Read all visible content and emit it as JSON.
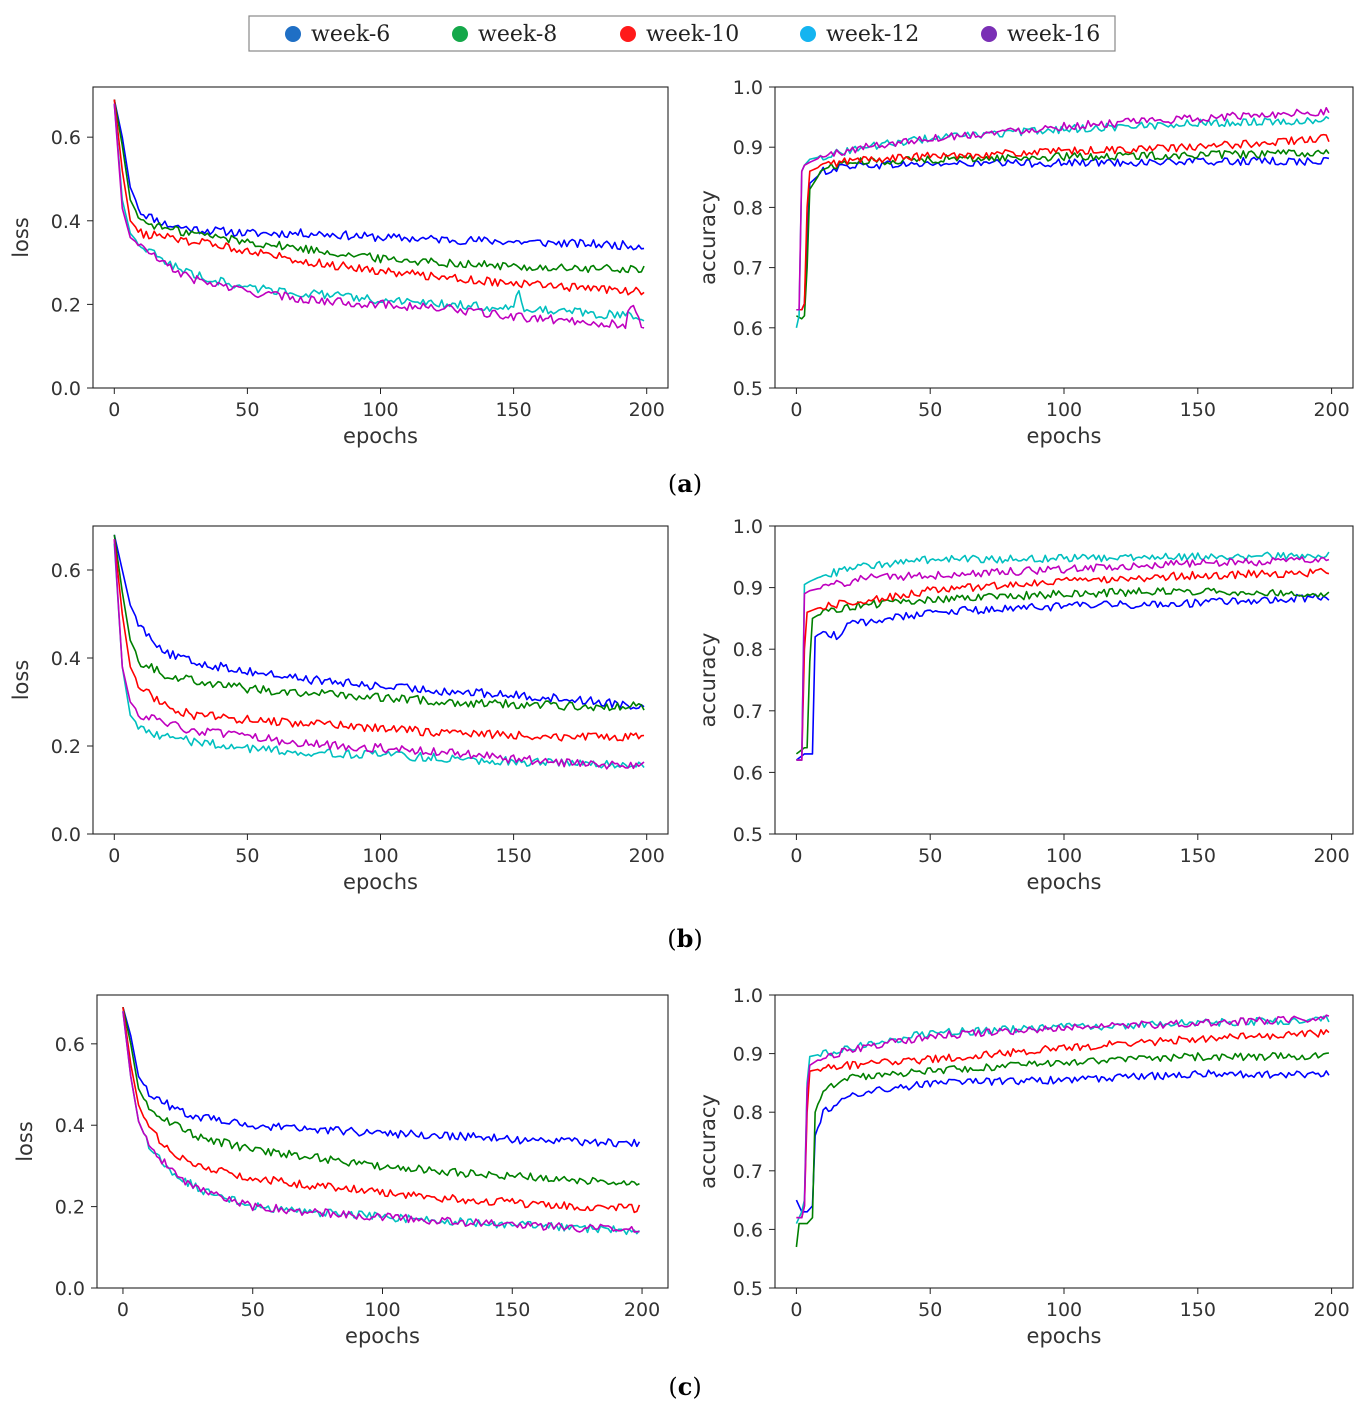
{
  "legend": [
    {
      "label": "week-6",
      "color": "#1f6fc5"
    },
    {
      "label": "week-8",
      "color": "#14a84a"
    },
    {
      "label": "week-10",
      "color": "#ff1a1a"
    },
    {
      "label": "week-12",
      "color": "#14b4f0"
    },
    {
      "label": "week-16",
      "color": "#7a2fb5"
    }
  ],
  "series_colors": {
    "week-6": "#0000ff",
    "week-8": "#008000",
    "week-10": "#ff0000",
    "week-12": "#00bfbf",
    "week-16": "#bf00bf"
  },
  "captions": [
    {
      "open": "(",
      "letter": "a",
      "close": ")"
    },
    {
      "open": "(",
      "letter": "b",
      "close": ")"
    },
    {
      "open": "(",
      "letter": "c",
      "close": ")"
    }
  ],
  "chart_data": [
    {
      "id": "a-loss",
      "type": "line",
      "xlabel": "epochs",
      "ylabel": "loss",
      "xlim": [
        -8,
        208
      ],
      "ylim": [
        0,
        0.72
      ],
      "xticks": [
        0,
        50,
        100,
        150,
        200
      ],
      "yticks": [
        0.0,
        0.2,
        0.4,
        0.6
      ],
      "ytick_labels": [
        "0.0",
        "0.2",
        "0.4",
        "0.6"
      ],
      "series": [
        {
          "name": "week-6",
          "x": [
            0,
            3,
            6,
            10,
            20,
            30,
            50,
            75,
            100,
            125,
            150,
            175,
            199
          ],
          "values": [
            0.69,
            0.6,
            0.48,
            0.42,
            0.39,
            0.38,
            0.37,
            0.37,
            0.36,
            0.355,
            0.35,
            0.345,
            0.34
          ]
        },
        {
          "name": "week-8",
          "x": [
            0,
            3,
            6,
            10,
            20,
            30,
            50,
            75,
            100,
            125,
            150,
            175,
            199
          ],
          "values": [
            0.69,
            0.58,
            0.45,
            0.4,
            0.38,
            0.37,
            0.35,
            0.33,
            0.31,
            0.3,
            0.29,
            0.285,
            0.285
          ]
        },
        {
          "name": "week-10",
          "x": [
            0,
            3,
            6,
            10,
            20,
            30,
            50,
            75,
            100,
            125,
            150,
            175,
            199
          ],
          "values": [
            0.69,
            0.52,
            0.4,
            0.37,
            0.36,
            0.35,
            0.33,
            0.3,
            0.28,
            0.265,
            0.25,
            0.24,
            0.23
          ]
        },
        {
          "name": "week-12",
          "x": [
            0,
            3,
            6,
            10,
            20,
            30,
            50,
            75,
            100,
            125,
            150,
            152,
            154,
            175,
            199
          ],
          "values": [
            0.68,
            0.45,
            0.37,
            0.34,
            0.3,
            0.27,
            0.24,
            0.225,
            0.21,
            0.2,
            0.19,
            0.24,
            0.19,
            0.18,
            0.17
          ]
        },
        {
          "name": "week-16",
          "x": [
            0,
            3,
            6,
            10,
            20,
            30,
            50,
            75,
            100,
            125,
            150,
            175,
            192,
            194,
            199
          ],
          "values": [
            0.68,
            0.43,
            0.36,
            0.34,
            0.29,
            0.26,
            0.23,
            0.21,
            0.2,
            0.19,
            0.17,
            0.16,
            0.15,
            0.2,
            0.14
          ]
        }
      ]
    },
    {
      "id": "a-acc",
      "type": "line",
      "xlabel": "epochs",
      "ylabel": "accuracy",
      "xlim": [
        -8,
        208
      ],
      "ylim": [
        0.5,
        1.0
      ],
      "xticks": [
        0,
        50,
        100,
        150,
        200
      ],
      "yticks": [
        0.5,
        0.6,
        0.7,
        0.8,
        0.9,
        1.0
      ],
      "ytick_labels": [
        "0.5",
        "0.6",
        "0.7",
        "0.8",
        "0.9",
        "1.0"
      ],
      "series": [
        {
          "name": "week-6",
          "x": [
            0,
            2,
            3,
            4,
            5,
            10,
            20,
            50,
            100,
            150,
            199
          ],
          "values": [
            0.63,
            0.63,
            0.64,
            0.75,
            0.84,
            0.86,
            0.87,
            0.872,
            0.874,
            0.876,
            0.877
          ]
        },
        {
          "name": "week-8",
          "x": [
            0,
            2,
            3,
            4,
            5,
            10,
            20,
            50,
            100,
            150,
            199
          ],
          "values": [
            0.62,
            0.615,
            0.62,
            0.7,
            0.83,
            0.865,
            0.875,
            0.88,
            0.884,
            0.887,
            0.89
          ]
        },
        {
          "name": "week-10",
          "x": [
            0,
            2,
            3,
            4,
            5,
            10,
            20,
            50,
            100,
            150,
            199
          ],
          "values": [
            0.63,
            0.63,
            0.64,
            0.8,
            0.86,
            0.87,
            0.878,
            0.885,
            0.893,
            0.9,
            0.915
          ]
        },
        {
          "name": "week-12",
          "x": [
            0,
            1,
            2,
            3,
            5,
            10,
            25,
            50,
            100,
            150,
            199
          ],
          "values": [
            0.6,
            0.62,
            0.86,
            0.87,
            0.88,
            0.885,
            0.9,
            0.915,
            0.93,
            0.94,
            0.945
          ]
        },
        {
          "name": "week-16",
          "x": [
            0,
            1,
            2,
            3,
            5,
            10,
            25,
            50,
            100,
            150,
            199
          ],
          "values": [
            0.63,
            0.63,
            0.86,
            0.87,
            0.875,
            0.885,
            0.9,
            0.915,
            0.935,
            0.948,
            0.96
          ]
        }
      ]
    },
    {
      "id": "b-loss",
      "type": "line",
      "xlabel": "epochs",
      "ylabel": "loss",
      "xlim": [
        -8,
        208
      ],
      "ylim": [
        0,
        0.7
      ],
      "xticks": [
        0,
        50,
        100,
        150,
        200
      ],
      "yticks": [
        0.0,
        0.2,
        0.4,
        0.6
      ],
      "ytick_labels": [
        "0.0",
        "0.2",
        "0.4",
        "0.6"
      ],
      "series": [
        {
          "name": "week-6",
          "x": [
            0,
            3,
            6,
            10,
            20,
            30,
            50,
            75,
            100,
            125,
            150,
            175,
            199
          ],
          "values": [
            0.68,
            0.6,
            0.52,
            0.47,
            0.41,
            0.39,
            0.37,
            0.35,
            0.335,
            0.325,
            0.315,
            0.305,
            0.29
          ]
        },
        {
          "name": "week-8",
          "x": [
            0,
            3,
            6,
            10,
            20,
            30,
            50,
            75,
            100,
            125,
            150,
            175,
            199
          ],
          "values": [
            0.68,
            0.55,
            0.44,
            0.39,
            0.36,
            0.35,
            0.33,
            0.32,
            0.31,
            0.3,
            0.295,
            0.29,
            0.29
          ]
        },
        {
          "name": "week-10",
          "x": [
            0,
            3,
            6,
            10,
            20,
            30,
            50,
            75,
            100,
            125,
            150,
            175,
            199
          ],
          "values": [
            0.67,
            0.5,
            0.38,
            0.33,
            0.29,
            0.27,
            0.26,
            0.25,
            0.24,
            0.23,
            0.225,
            0.22,
            0.22
          ]
        },
        {
          "name": "week-12",
          "x": [
            0,
            3,
            6,
            10,
            20,
            30,
            50,
            75,
            100,
            125,
            150,
            175,
            199
          ],
          "values": [
            0.66,
            0.38,
            0.27,
            0.24,
            0.22,
            0.21,
            0.195,
            0.185,
            0.18,
            0.172,
            0.165,
            0.16,
            0.155
          ]
        },
        {
          "name": "week-16",
          "x": [
            0,
            3,
            6,
            10,
            20,
            30,
            50,
            75,
            100,
            125,
            150,
            175,
            199
          ],
          "values": [
            0.67,
            0.38,
            0.3,
            0.27,
            0.25,
            0.235,
            0.22,
            0.205,
            0.195,
            0.185,
            0.17,
            0.16,
            0.155
          ]
        }
      ]
    },
    {
      "id": "b-acc",
      "type": "line",
      "xlabel": "epochs",
      "ylabel": "accuracy",
      "xlim": [
        -8,
        208
      ],
      "ylim": [
        0.5,
        1.0
      ],
      "xticks": [
        0,
        50,
        100,
        150,
        200
      ],
      "yticks": [
        0.5,
        0.6,
        0.7,
        0.8,
        0.9,
        1.0
      ],
      "ytick_labels": [
        "0.5",
        "0.6",
        "0.7",
        "0.8",
        "0.9",
        "1.0"
      ],
      "series": [
        {
          "name": "week-6",
          "x": [
            0,
            3,
            5,
            6,
            7,
            10,
            15,
            20,
            50,
            100,
            150,
            199
          ],
          "values": [
            0.62,
            0.63,
            0.63,
            0.63,
            0.82,
            0.83,
            0.82,
            0.84,
            0.86,
            0.87,
            0.875,
            0.885
          ]
        },
        {
          "name": "week-8",
          "x": [
            0,
            3,
            4,
            5,
            6,
            10,
            20,
            50,
            100,
            150,
            199
          ],
          "values": [
            0.63,
            0.64,
            0.64,
            0.78,
            0.85,
            0.86,
            0.87,
            0.88,
            0.89,
            0.895,
            0.89
          ]
        },
        {
          "name": "week-10",
          "x": [
            0,
            1,
            2,
            3,
            4,
            10,
            20,
            50,
            100,
            150,
            199
          ],
          "values": [
            0.62,
            0.62,
            0.62,
            0.8,
            0.86,
            0.87,
            0.875,
            0.895,
            0.91,
            0.92,
            0.925
          ]
        },
        {
          "name": "week-12",
          "x": [
            0,
            1,
            2,
            3,
            5,
            10,
            25,
            50,
            100,
            150,
            199
          ],
          "values": [
            0.62,
            0.62,
            0.62,
            0.905,
            0.91,
            0.92,
            0.935,
            0.945,
            0.948,
            0.95,
            0.952
          ]
        },
        {
          "name": "week-16",
          "x": [
            0,
            1,
            2,
            3,
            5,
            10,
            25,
            50,
            100,
            150,
            199
          ],
          "values": [
            0.62,
            0.62,
            0.62,
            0.89,
            0.895,
            0.9,
            0.915,
            0.92,
            0.93,
            0.94,
            0.945
          ]
        }
      ]
    },
    {
      "id": "c-loss",
      "type": "line",
      "xlabel": "epochs",
      "ylabel": "loss",
      "xlim": [
        -10,
        210
      ],
      "ylim": [
        0,
        0.72
      ],
      "xticks": [
        0,
        50,
        100,
        150,
        200
      ],
      "yticks": [
        0.0,
        0.2,
        0.4,
        0.6
      ],
      "ytick_labels": [
        "0.0",
        "0.2",
        "0.4",
        "0.6"
      ],
      "series": [
        {
          "name": "week-6",
          "x": [
            0,
            3,
            6,
            10,
            20,
            30,
            50,
            75,
            100,
            125,
            150,
            175,
            199
          ],
          "values": [
            0.69,
            0.62,
            0.52,
            0.48,
            0.44,
            0.42,
            0.4,
            0.39,
            0.38,
            0.375,
            0.365,
            0.36,
            0.355
          ]
        },
        {
          "name": "week-8",
          "x": [
            0,
            3,
            6,
            10,
            20,
            30,
            50,
            75,
            100,
            125,
            150,
            175,
            199
          ],
          "values": [
            0.69,
            0.6,
            0.49,
            0.44,
            0.4,
            0.37,
            0.34,
            0.32,
            0.3,
            0.285,
            0.275,
            0.265,
            0.26
          ]
        },
        {
          "name": "week-10",
          "x": [
            0,
            3,
            6,
            10,
            20,
            30,
            50,
            75,
            100,
            125,
            150,
            175,
            199
          ],
          "values": [
            0.69,
            0.55,
            0.45,
            0.39,
            0.33,
            0.3,
            0.27,
            0.25,
            0.235,
            0.22,
            0.21,
            0.2,
            0.195
          ]
        },
        {
          "name": "week-12",
          "x": [
            0,
            3,
            6,
            10,
            20,
            30,
            50,
            75,
            100,
            125,
            150,
            175,
            199
          ],
          "values": [
            0.68,
            0.52,
            0.41,
            0.35,
            0.28,
            0.24,
            0.2,
            0.185,
            0.175,
            0.165,
            0.155,
            0.148,
            0.14
          ]
        },
        {
          "name": "week-16",
          "x": [
            0,
            3,
            6,
            10,
            20,
            30,
            50,
            75,
            100,
            125,
            150,
            175,
            199
          ],
          "values": [
            0.68,
            0.52,
            0.41,
            0.35,
            0.28,
            0.24,
            0.2,
            0.185,
            0.175,
            0.165,
            0.155,
            0.148,
            0.145
          ]
        }
      ]
    },
    {
      "id": "c-acc",
      "type": "line",
      "xlabel": "epochs",
      "ylabel": "accuracy",
      "xlim": [
        -8,
        208
      ],
      "ylim": [
        0.5,
        1.0
      ],
      "xticks": [
        0,
        50,
        100,
        150,
        200
      ],
      "yticks": [
        0.5,
        0.6,
        0.7,
        0.8,
        0.9,
        1.0
      ],
      "ytick_labels": [
        "0.5",
        "0.6",
        "0.7",
        "0.8",
        "0.9",
        "1.0"
      ],
      "series": [
        {
          "name": "week-6",
          "x": [
            0,
            2,
            4,
            6,
            7,
            10,
            20,
            50,
            100,
            150,
            199
          ],
          "values": [
            0.65,
            0.63,
            0.63,
            0.64,
            0.76,
            0.8,
            0.83,
            0.85,
            0.855,
            0.865,
            0.865
          ]
        },
        {
          "name": "week-8",
          "x": [
            0,
            1,
            2,
            4,
            6,
            7,
            10,
            20,
            50,
            100,
            150,
            199
          ],
          "values": [
            0.57,
            0.61,
            0.61,
            0.61,
            0.62,
            0.8,
            0.84,
            0.86,
            0.87,
            0.885,
            0.895,
            0.895
          ]
        },
        {
          "name": "week-10",
          "x": [
            0,
            2,
            3,
            4,
            5,
            10,
            20,
            50,
            100,
            150,
            199
          ],
          "values": [
            0.62,
            0.62,
            0.64,
            0.8,
            0.87,
            0.875,
            0.88,
            0.89,
            0.91,
            0.925,
            0.935
          ]
        },
        {
          "name": "week-12",
          "x": [
            0,
            2,
            3,
            4,
            5,
            10,
            25,
            50,
            100,
            150,
            199
          ],
          "values": [
            0.61,
            0.63,
            0.65,
            0.85,
            0.895,
            0.9,
            0.915,
            0.935,
            0.945,
            0.952,
            0.958
          ]
        },
        {
          "name": "week-16",
          "x": [
            0,
            2,
            3,
            4,
            5,
            10,
            25,
            50,
            100,
            150,
            199
          ],
          "values": [
            0.62,
            0.62,
            0.64,
            0.84,
            0.88,
            0.895,
            0.91,
            0.93,
            0.945,
            0.952,
            0.96
          ]
        }
      ]
    }
  ]
}
